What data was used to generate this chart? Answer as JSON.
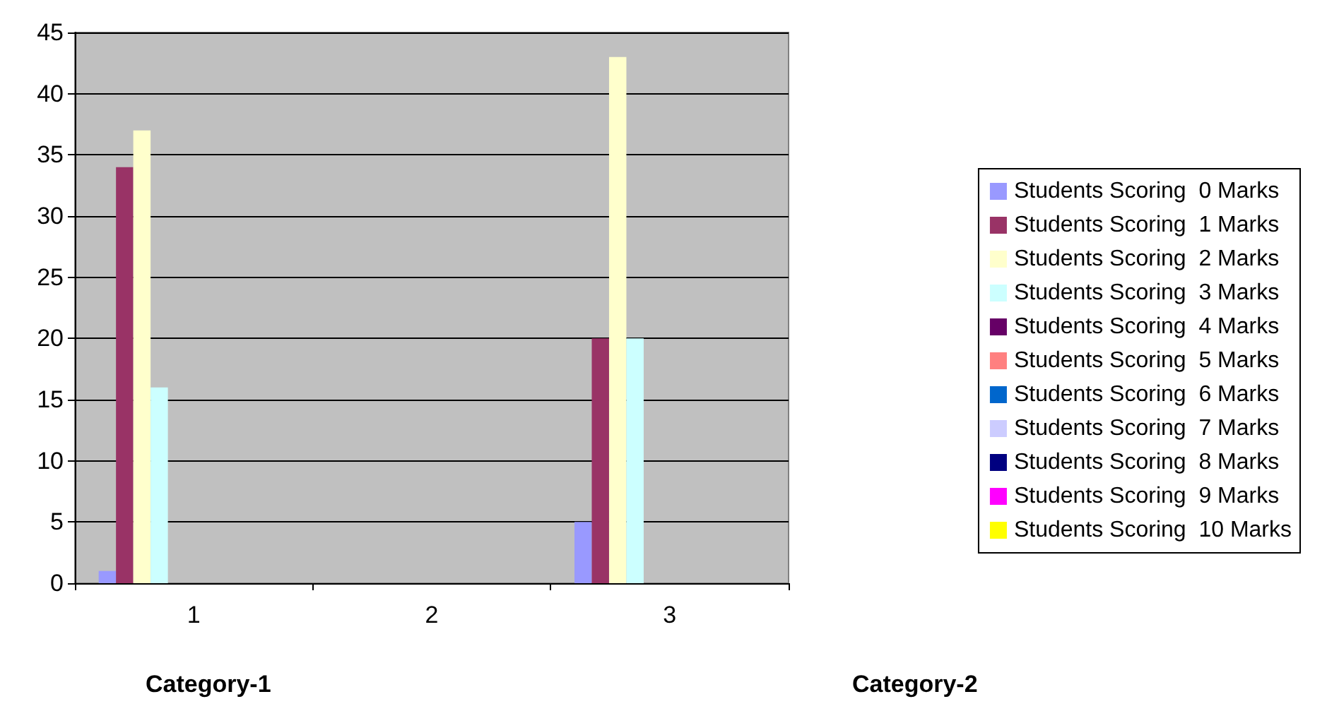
{
  "chart_data": {
    "type": "bar",
    "categories": [
      "1",
      "2",
      "3"
    ],
    "series": [
      {
        "name": "Students Scoring  0 Marks",
        "color": "#9999ff",
        "values": [
          1,
          null,
          5
        ]
      },
      {
        "name": "Students Scoring  1 Marks",
        "color": "#993366",
        "values": [
          34,
          null,
          20
        ]
      },
      {
        "name": "Students Scoring  2 Marks",
        "color": "#ffffcc",
        "values": [
          37,
          null,
          43
        ]
      },
      {
        "name": "Students Scoring  3 Marks",
        "color": "#ccffff",
        "values": [
          16,
          null,
          20
        ]
      },
      {
        "name": "Students Scoring  4 Marks",
        "color": "#660066",
        "values": [
          0,
          null,
          0
        ]
      },
      {
        "name": "Students Scoring  5 Marks",
        "color": "#ff8080",
        "values": [
          0,
          null,
          0
        ]
      },
      {
        "name": "Students Scoring  6 Marks",
        "color": "#0066cc",
        "values": [
          0,
          null,
          0
        ]
      },
      {
        "name": "Students Scoring  7 Marks",
        "color": "#ccccff",
        "values": [
          0,
          null,
          0
        ]
      },
      {
        "name": "Students Scoring  8 Marks",
        "color": "#000080",
        "values": [
          0,
          null,
          0
        ]
      },
      {
        "name": "Students Scoring  9 Marks",
        "color": "#ff00ff",
        "values": [
          0,
          null,
          0
        ]
      },
      {
        "name": "Students Scoring  10 Marks",
        "color": "#ffff00",
        "values": [
          0,
          null,
          0
        ]
      }
    ],
    "ylim": [
      0,
      45
    ],
    "yticks": [
      0,
      5,
      10,
      15,
      20,
      25,
      30,
      35,
      40,
      45
    ],
    "grid": "y",
    "legend": "right",
    "annotations": [
      "Category-1",
      "Category-2"
    ]
  }
}
